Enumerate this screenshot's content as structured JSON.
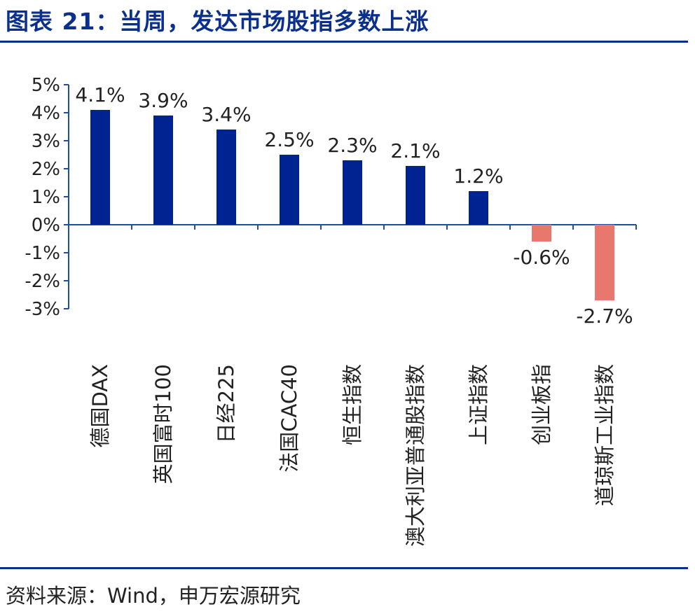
{
  "header": {
    "title": "图表 21：当周，发达市场股指多数上涨"
  },
  "footer": {
    "source": "资料来源：Wind，申万宏源研究"
  },
  "colors": {
    "positive": "#002392",
    "negative": "#e8776d",
    "title": "#0a2f8c",
    "axis": "#1f4fa3",
    "text": "#222222"
  },
  "chart_data": {
    "type": "bar",
    "title": "",
    "xlabel": "",
    "ylabel": "",
    "ylim": [
      -3,
      5
    ],
    "yticks": [
      5,
      4,
      3,
      2,
      1,
      0,
      -1,
      -2,
      -3
    ],
    "ytick_labels": [
      "5%",
      "4%",
      "3%",
      "2%",
      "1%",
      "0%",
      "-1%",
      "-2%",
      "-3%"
    ],
    "grid": false,
    "categories": [
      "德国DAX",
      "英国富时100",
      "日经225",
      "法国CAC40",
      "恒生指数",
      "澳大利亚普通股指数",
      "上证指数",
      "创业板指",
      "道琼斯工业指数"
    ],
    "values": [
      4.1,
      3.9,
      3.4,
      2.5,
      2.3,
      2.1,
      1.2,
      -0.6,
      -2.7
    ],
    "data_labels": [
      "4.1%",
      "3.9%",
      "3.4%",
      "2.5%",
      "2.3%",
      "2.1%",
      "1.2%",
      "-0.6%",
      "-2.7%"
    ]
  }
}
